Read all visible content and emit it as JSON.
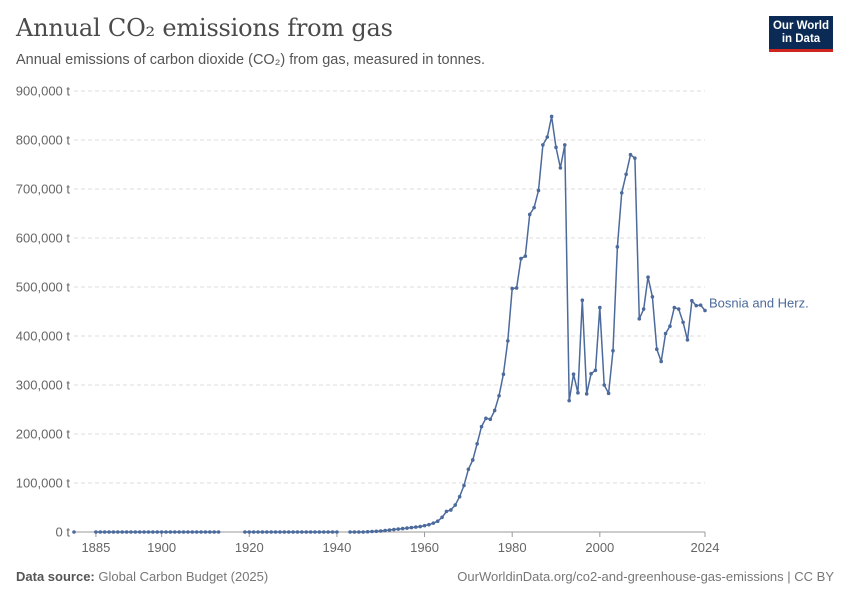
{
  "header": {
    "title": "Annual CO₂ emissions from gas",
    "subtitle": "Annual emissions of carbon dioxide (CO₂) from gas, measured in tonnes."
  },
  "logo": {
    "line1": "Our World",
    "line2": "in Data"
  },
  "footer": {
    "source_label": "Data source:",
    "source_value": "Global Carbon Budget (2025)",
    "right": "OurWorldinData.org/co2-and-greenhouse-gas-emissions | CC BY"
  },
  "colors": {
    "series": "#4c6a9c",
    "grid": "#dddddd",
    "axis": "#999999"
  },
  "chart_data": {
    "type": "line",
    "title": "Annual CO₂ emissions from gas",
    "xlabel": "",
    "ylabel": "",
    "xlim": [
      1880,
      2024
    ],
    "ylim": [
      0,
      900000
    ],
    "x_ticks": [
      1885,
      1900,
      1920,
      1940,
      1960,
      1980,
      2000,
      2024
    ],
    "y_ticks": [
      0,
      100000,
      200000,
      300000,
      400000,
      500000,
      600000,
      700000,
      800000,
      900000
    ],
    "y_tick_labels": [
      "0 t",
      "100,000 t",
      "200,000 t",
      "300,000 t",
      "400,000 t",
      "500,000 t",
      "600,000 t",
      "700,000 t",
      "800,000 t",
      "900,000 t"
    ],
    "series": [
      {
        "name": "Bosnia and Herz.",
        "segments": [
          {
            "x": [
              1880
            ],
            "y": [
              0
            ]
          },
          {
            "x": [
              1885,
              1886,
              1887,
              1888,
              1889,
              1890,
              1891,
              1892,
              1893,
              1894,
              1895,
              1896,
              1897,
              1898,
              1899,
              1900,
              1901,
              1902,
              1903,
              1904,
              1905,
              1906,
              1907,
              1908,
              1909,
              1910,
              1911,
              1912,
              1913
            ],
            "y": [
              0,
              0,
              0,
              0,
              0,
              0,
              0,
              0,
              0,
              0,
              0,
              0,
              0,
              0,
              0,
              0,
              0,
              0,
              0,
              0,
              0,
              0,
              0,
              0,
              0,
              0,
              0,
              0,
              0
            ]
          },
          {
            "x": [
              1919,
              1920,
              1921,
              1922,
              1923,
              1924,
              1925,
              1926,
              1927,
              1928,
              1929,
              1930,
              1931,
              1932,
              1933,
              1934,
              1935,
              1936,
              1937,
              1938,
              1939,
              1940
            ],
            "y": [
              0,
              0,
              0,
              0,
              0,
              0,
              0,
              0,
              0,
              0,
              0,
              0,
              0,
              0,
              0,
              0,
              0,
              0,
              0,
              0,
              0,
              0
            ]
          },
          {
            "x": [
              1943,
              1944,
              1945,
              1946,
              1947,
              1948,
              1949,
              1950,
              1951,
              1952,
              1953,
              1954,
              1955,
              1956,
              1957,
              1958,
              1959,
              1960,
              1961,
              1962,
              1963,
              1964,
              1965,
              1966,
              1967,
              1968,
              1969,
              1970,
              1971,
              1972,
              1973,
              1974,
              1975,
              1976,
              1977,
              1978,
              1979,
              1980,
              1981,
              1982,
              1983,
              1984,
              1985,
              1986,
              1987,
              1988,
              1989,
              1990,
              1991,
              1992,
              1993,
              1994,
              1995,
              1996,
              1997,
              1998,
              1999,
              2000,
              2001,
              2002,
              2003,
              2004,
              2005,
              2006,
              2007,
              2008,
              2009,
              2010,
              2011,
              2012,
              2013,
              2014,
              2015,
              2016,
              2017,
              2018,
              2019,
              2020,
              2021,
              2022,
              2023,
              2024
            ],
            "y": [
              0,
              0,
              0,
              0,
              500,
              1000,
              1500,
              2000,
              3000,
              4000,
              5000,
              6000,
              7000,
              8000,
              9000,
              10000,
              11000,
              13000,
              15000,
              18000,
              22000,
              30000,
              42000,
              45000,
              55000,
              72000,
              95000,
              128000,
              147000,
              180000,
              215000,
              232000,
              230000,
              248000,
              278000,
              322000,
              390000,
              497000,
              498000,
              558000,
              563000,
              648000,
              662000,
              697000,
              790000,
              806000,
              848000,
              785000,
              743000,
              790000,
              268000,
              322000,
              284000,
              473000,
              282000,
              323000,
              330000,
              458000,
              300000,
              283000,
              370000,
              582000,
              692000,
              730000,
              770000,
              763000,
              435000,
              455000,
              520000,
              480000,
              373000,
              348000,
              405000,
              420000,
              458000,
              455000,
              428000,
              392000,
              472000,
              462000,
              463000,
              452000
            ]
          }
        ]
      }
    ]
  }
}
